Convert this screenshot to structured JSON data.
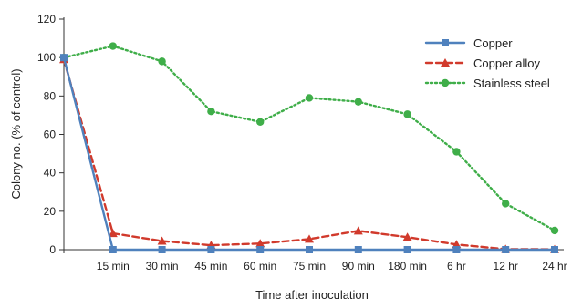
{
  "chart_data": {
    "type": "line",
    "xlabel": "Time after inoculation",
    "ylabel": "Colony no. (% of control)",
    "ylim": [
      0,
      120
    ],
    "yticks": [
      0,
      20,
      40,
      60,
      80,
      100,
      120
    ],
    "categories": [
      "",
      "15 min",
      "30 min",
      "45 min",
      "60 min",
      "75 min",
      "90 min",
      "180 min",
      "6 hr",
      "12 hr",
      "24 hr"
    ],
    "grid": false,
    "legend_position": "top-right",
    "series": [
      {
        "name": "Copper",
        "color": "#4f81bd",
        "line_style": "solid",
        "marker": "square",
        "values": [
          100,
          0,
          0,
          0,
          0,
          0,
          0,
          0,
          0,
          0,
          0
        ]
      },
      {
        "name": "Copper alloy",
        "color": "#d13a2c",
        "line_style": "dashed",
        "marker": "triangle",
        "values": [
          99,
          8.5,
          4.5,
          2.3,
          3.2,
          5.5,
          9.8,
          6.5,
          2.7,
          0.3,
          0.2
        ]
      },
      {
        "name": "Stainless steel",
        "color": "#3fae49",
        "line_style": "dotted",
        "marker": "circle",
        "values": [
          100,
          106,
          98,
          72,
          66.5,
          79,
          77,
          70.5,
          51,
          24,
          10
        ]
      }
    ]
  }
}
